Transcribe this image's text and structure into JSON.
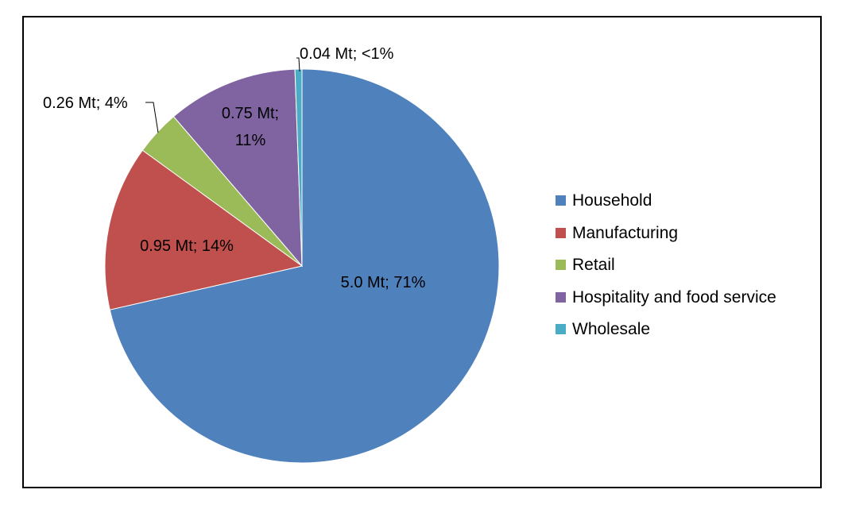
{
  "chart_data": {
    "type": "pie",
    "title": "",
    "legend_position": "right",
    "slices": [
      {
        "label": "Household",
        "value": 5.0,
        "data_label": "5.0 Mt; 71%",
        "color": "#4F81BD"
      },
      {
        "label": "Manufacturing",
        "value": 0.95,
        "data_label": "0.95 Mt; 14%",
        "color": "#C0504D"
      },
      {
        "label": "Retail",
        "value": 0.26,
        "data_label": "0.26 Mt; 4%",
        "color": "#9BBB59"
      },
      {
        "label": "Hospitality and food service",
        "value": 0.75,
        "data_label_lines": [
          "0.75 Mt;",
          "11%"
        ],
        "color": "#8064A2"
      },
      {
        "label": "Wholesale",
        "value": 0.04,
        "data_label": "0.04 Mt; <1%",
        "color": "#4BACC6"
      }
    ]
  }
}
